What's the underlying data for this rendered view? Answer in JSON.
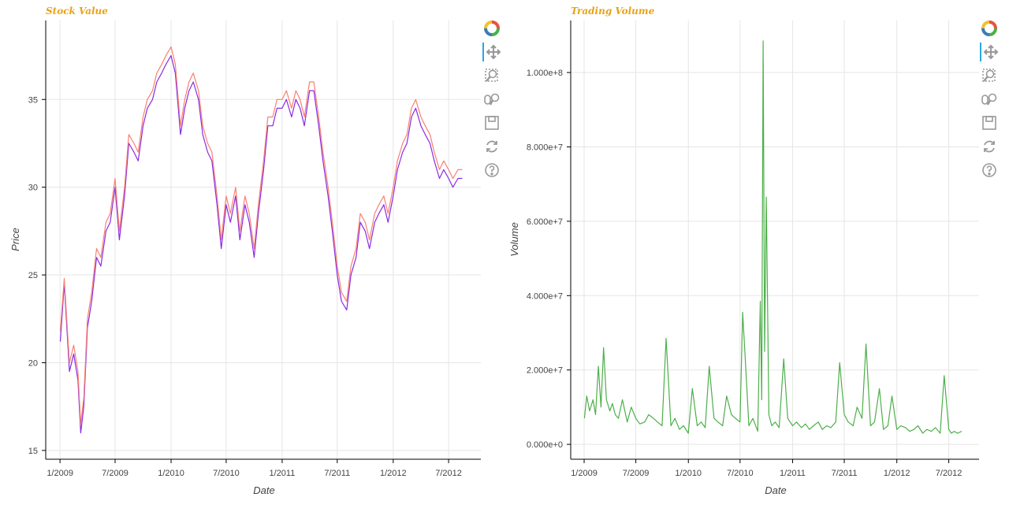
{
  "chart_data": [
    {
      "type": "line",
      "title": "Stock Value",
      "title_color": "#e8a317",
      "xlabel": "Date",
      "ylabel": "Price",
      "x_ticks": [
        "1/2009",
        "7/2009",
        "1/2010",
        "7/2010",
        "1/2011",
        "7/2011",
        "1/2012",
        "7/2012"
      ],
      "y_ticks": [
        "15",
        "20",
        "25",
        "30",
        "35"
      ],
      "ylim": [
        14.5,
        39.5
      ],
      "xlim": [
        "2008-11-15",
        "2012-10-15"
      ],
      "grid": true,
      "series": [
        {
          "color": "#8a2be2",
          "x": [
            "2009-01-02",
            "2009-01-15",
            "2009-02-01",
            "2009-02-15",
            "2009-03-01",
            "2009-03-10",
            "2009-03-20",
            "2009-04-01",
            "2009-04-15",
            "2009-05-01",
            "2009-05-15",
            "2009-06-01",
            "2009-06-15",
            "2009-07-01",
            "2009-07-15",
            "2009-08-01",
            "2009-08-15",
            "2009-09-01",
            "2009-09-15",
            "2009-10-01",
            "2009-10-15",
            "2009-11-01",
            "2009-11-15",
            "2009-12-01",
            "2009-12-15",
            "2010-01-01",
            "2010-01-15",
            "2010-02-01",
            "2010-02-15",
            "2010-03-01",
            "2010-03-15",
            "2010-04-01",
            "2010-04-15",
            "2010-05-01",
            "2010-05-15",
            "2010-06-01",
            "2010-06-15",
            "2010-07-01",
            "2010-07-15",
            "2010-08-01",
            "2010-08-15",
            "2010-09-01",
            "2010-09-15",
            "2010-10-01",
            "2010-10-15",
            "2010-11-01",
            "2010-11-15",
            "2010-12-01",
            "2010-12-15",
            "2011-01-01",
            "2011-01-15",
            "2011-02-01",
            "2011-02-15",
            "2011-03-01",
            "2011-03-15",
            "2011-04-01",
            "2011-04-15",
            "2011-05-01",
            "2011-05-15",
            "2011-06-01",
            "2011-06-15",
            "2011-07-01",
            "2011-07-15",
            "2011-08-01",
            "2011-08-15",
            "2011-09-01",
            "2011-09-15",
            "2011-10-01",
            "2011-10-15",
            "2011-11-01",
            "2011-11-15",
            "2011-12-01",
            "2011-12-15",
            "2012-01-01",
            "2012-01-15",
            "2012-02-01",
            "2012-02-15",
            "2012-03-01",
            "2012-03-15",
            "2012-04-01",
            "2012-04-15",
            "2012-05-01",
            "2012-05-15",
            "2012-06-01",
            "2012-06-15",
            "2012-07-01",
            "2012-07-15",
            "2012-08-01",
            "2012-08-15"
          ],
          "values": [
            21.2,
            24.5,
            19.5,
            20.5,
            19.0,
            16.0,
            17.5,
            22.0,
            23.5,
            26.0,
            25.5,
            27.5,
            28.0,
            30.0,
            27.0,
            29.5,
            32.5,
            32.0,
            31.5,
            33.5,
            34.5,
            35.0,
            36.0,
            36.5,
            37.0,
            37.5,
            36.5,
            33.0,
            34.5,
            35.5,
            36.0,
            35.0,
            33.0,
            32.0,
            31.5,
            29.0,
            26.5,
            29.0,
            28.0,
            29.5,
            27.0,
            29.0,
            28.0,
            26.0,
            28.5,
            31.0,
            33.5,
            33.5,
            34.5,
            34.5,
            35.0,
            34.0,
            35.0,
            34.5,
            33.5,
            35.5,
            35.5,
            33.5,
            31.5,
            29.5,
            27.5,
            25.0,
            23.5,
            23.0,
            25.0,
            26.0,
            28.0,
            27.5,
            26.5,
            28.0,
            28.5,
            29.0,
            28.0,
            29.5,
            31.0,
            32.0,
            32.5,
            34.0,
            34.5,
            33.5,
            33.0,
            32.5,
            31.5,
            30.5,
            31.0,
            30.5,
            30.0,
            30.5,
            30.5
          ]
        },
        {
          "color": "#fa8072",
          "x": [
            "2009-01-02",
            "2009-01-15",
            "2009-02-01",
            "2009-02-15",
            "2009-03-01",
            "2009-03-10",
            "2009-03-20",
            "2009-04-01",
            "2009-04-15",
            "2009-05-01",
            "2009-05-15",
            "2009-06-01",
            "2009-06-15",
            "2009-07-01",
            "2009-07-15",
            "2009-08-01",
            "2009-08-15",
            "2009-09-01",
            "2009-09-15",
            "2009-10-01",
            "2009-10-15",
            "2009-11-01",
            "2009-11-15",
            "2009-12-01",
            "2009-12-15",
            "2010-01-01",
            "2010-01-15",
            "2010-02-01",
            "2010-02-15",
            "2010-03-01",
            "2010-03-15",
            "2010-04-01",
            "2010-04-15",
            "2010-05-01",
            "2010-05-15",
            "2010-06-01",
            "2010-06-15",
            "2010-07-01",
            "2010-07-15",
            "2010-08-01",
            "2010-08-15",
            "2010-09-01",
            "2010-09-15",
            "2010-10-01",
            "2010-10-15",
            "2010-11-01",
            "2010-11-15",
            "2010-12-01",
            "2010-12-15",
            "2011-01-01",
            "2011-01-15",
            "2011-02-01",
            "2011-02-15",
            "2011-03-01",
            "2011-03-15",
            "2011-04-01",
            "2011-04-15",
            "2011-05-01",
            "2011-05-15",
            "2011-06-01",
            "2011-06-15",
            "2011-07-01",
            "2011-07-15",
            "2011-08-01",
            "2011-08-15",
            "2011-09-01",
            "2011-09-15",
            "2011-10-01",
            "2011-10-15",
            "2011-11-01",
            "2011-11-15",
            "2011-12-01",
            "2011-12-15",
            "2012-01-01",
            "2012-01-15",
            "2012-02-01",
            "2012-02-15",
            "2012-03-01",
            "2012-03-15",
            "2012-04-01",
            "2012-04-15",
            "2012-05-01",
            "2012-05-15",
            "2012-06-01",
            "2012-06-15",
            "2012-07-01",
            "2012-07-15",
            "2012-08-01",
            "2012-08-15"
          ],
          "values": [
            21.8,
            24.8,
            20.0,
            21.0,
            19.5,
            16.5,
            18.0,
            22.5,
            24.0,
            26.5,
            26.0,
            28.0,
            28.5,
            30.5,
            27.5,
            30.0,
            33.0,
            32.5,
            32.0,
            34.0,
            35.0,
            35.5,
            36.5,
            37.0,
            37.5,
            38.0,
            37.0,
            33.5,
            35.0,
            36.0,
            36.5,
            35.5,
            33.5,
            32.5,
            32.0,
            29.5,
            27.0,
            29.5,
            28.5,
            30.0,
            27.5,
            29.5,
            28.5,
            26.5,
            29.0,
            31.5,
            34.0,
            34.0,
            35.0,
            35.0,
            35.5,
            34.5,
            35.5,
            35.0,
            34.0,
            36.0,
            36.0,
            34.0,
            32.0,
            30.0,
            28.0,
            25.5,
            24.0,
            23.5,
            25.5,
            26.5,
            28.5,
            28.0,
            27.0,
            28.5,
            29.0,
            29.5,
            28.5,
            30.0,
            31.5,
            32.5,
            33.0,
            34.5,
            35.0,
            34.0,
            33.5,
            33.0,
            32.0,
            31.0,
            31.5,
            31.0,
            30.5,
            31.0,
            31.0
          ]
        }
      ]
    },
    {
      "type": "line",
      "title": "Trading Volume",
      "title_color": "#e8a317",
      "xlabel": "Date",
      "ylabel": "Volume",
      "x_ticks": [
        "1/2009",
        "7/2009",
        "1/2010",
        "7/2010",
        "1/2011",
        "7/2011",
        "1/2012",
        "7/2012"
      ],
      "y_ticks": [
        "0.000e+0",
        "2.000e+7",
        "4.000e+7",
        "6.000e+7",
        "8.000e+7",
        "1.000e+8"
      ],
      "ylim": [
        -4000000,
        114000000
      ],
      "xlim": [
        "2008-11-15",
        "2012-10-15"
      ],
      "grid": true,
      "series": [
        {
          "color": "#4daf4a",
          "x": [
            "2009-01-02",
            "2009-01-10",
            "2009-01-20",
            "2009-02-01",
            "2009-02-10",
            "2009-02-20",
            "2009-03-01",
            "2009-03-10",
            "2009-03-20",
            "2009-04-01",
            "2009-04-10",
            "2009-04-20",
            "2009-05-01",
            "2009-05-15",
            "2009-06-01",
            "2009-06-15",
            "2009-07-01",
            "2009-07-15",
            "2009-08-01",
            "2009-08-15",
            "2009-09-01",
            "2009-09-15",
            "2009-10-01",
            "2009-10-15",
            "2009-11-01",
            "2009-11-15",
            "2009-12-01",
            "2009-12-15",
            "2010-01-01",
            "2010-01-15",
            "2010-02-01",
            "2010-02-15",
            "2010-03-01",
            "2010-03-15",
            "2010-04-01",
            "2010-04-15",
            "2010-05-01",
            "2010-05-15",
            "2010-06-01",
            "2010-06-15",
            "2010-07-01",
            "2010-07-10",
            "2010-07-20",
            "2010-08-01",
            "2010-08-15",
            "2010-09-01",
            "2010-09-10",
            "2010-09-15",
            "2010-09-20",
            "2010-09-25",
            "2010-10-01",
            "2010-10-10",
            "2010-10-20",
            "2010-11-01",
            "2010-11-15",
            "2010-12-01",
            "2010-12-15",
            "2011-01-01",
            "2011-01-15",
            "2011-02-01",
            "2011-02-15",
            "2011-03-01",
            "2011-03-15",
            "2011-04-01",
            "2011-04-15",
            "2011-05-01",
            "2011-05-15",
            "2011-06-01",
            "2011-06-15",
            "2011-07-01",
            "2011-07-15",
            "2011-08-01",
            "2011-08-15",
            "2011-09-01",
            "2011-09-15",
            "2011-10-01",
            "2011-10-15",
            "2011-11-01",
            "2011-11-15",
            "2011-12-01",
            "2011-12-15",
            "2012-01-01",
            "2012-01-15",
            "2012-02-01",
            "2012-02-15",
            "2012-03-01",
            "2012-03-15",
            "2012-04-01",
            "2012-04-15",
            "2012-05-01",
            "2012-05-15",
            "2012-06-01",
            "2012-06-15",
            "2012-07-01",
            "2012-07-10",
            "2012-07-20",
            "2012-08-01",
            "2012-08-15"
          ],
          "values": [
            7000000,
            13000000,
            9000000,
            12000000,
            8000000,
            21000000,
            10000000,
            26000000,
            12000000,
            9000000,
            11000000,
            8000000,
            7000000,
            12000000,
            6000000,
            10000000,
            7000000,
            5500000,
            6000000,
            8000000,
            7000000,
            6000000,
            5000000,
            28500000,
            5000000,
            7000000,
            4000000,
            5000000,
            3000000,
            15000000,
            5000000,
            6000000,
            4500000,
            21000000,
            7000000,
            6000000,
            5000000,
            13000000,
            8000000,
            7000000,
            6000000,
            35500000,
            22000000,
            5000000,
            7000000,
            3500000,
            38500000,
            12000000,
            108500000,
            25000000,
            66500000,
            8000000,
            5000000,
            6000000,
            4500000,
            23000000,
            7000000,
            5000000,
            6000000,
            4500000,
            5500000,
            4000000,
            5000000,
            6000000,
            4000000,
            5000000,
            4500000,
            6000000,
            22000000,
            8000000,
            6000000,
            5000000,
            10000000,
            7000000,
            27000000,
            5000000,
            6000000,
            15000000,
            4000000,
            5000000,
            13000000,
            4000000,
            5000000,
            4500000,
            3500000,
            4000000,
            5000000,
            3000000,
            4000000,
            3500000,
            4500000,
            3000000,
            18500000,
            4000000,
            3000000,
            3500000,
            3000000,
            3500000
          ]
        }
      ]
    }
  ]
}
